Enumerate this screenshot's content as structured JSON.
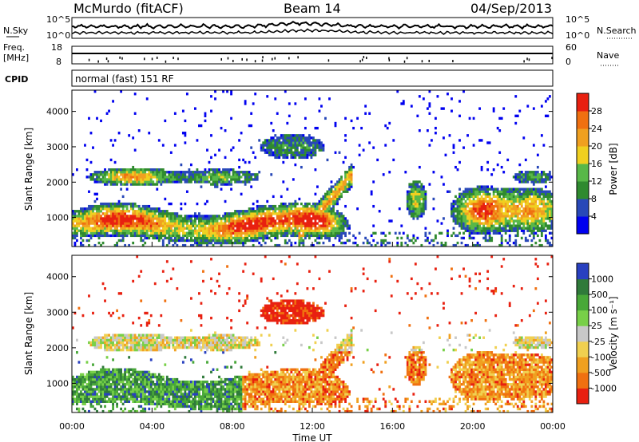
{
  "header": {
    "station": "McMurdo (fitACF)",
    "beam": "Beam 14",
    "date": "04/Sep/2013"
  },
  "status_panel": {
    "noise_left_label": "N.Sky",
    "noise_right_label": "N.Search",
    "noise_ticks": [
      "10^5",
      "10^0"
    ],
    "freq_label_line1": "Freq.",
    "freq_label_line2": "[MHz]",
    "freq_ticks": [
      "18",
      "8"
    ],
    "nave_label": "Nave",
    "nave_ticks": [
      "60",
      "0"
    ],
    "cpid_label": "CPID",
    "cpid_text": "normal (fast) 151 RF"
  },
  "colors": {
    "power_scale": [
      "#0000f0",
      "#2848b8",
      "#2f8a2f",
      "#58b848",
      "#f0d020",
      "#f0a020",
      "#f07010",
      "#e82010"
    ],
    "velocity_scale": [
      "#2840c0",
      "#2f7a3a",
      "#48a838",
      "#78d048",
      "#c8c8c8",
      "#f0d050",
      "#f0a020",
      "#f07010",
      "#e82010"
    ]
  },
  "chart_data": [
    {
      "type": "heatmap",
      "name": "power",
      "ylabel": "Slant Range [km]",
      "ylim": [
        180,
        4600
      ],
      "yticks": [
        "1000",
        "2000",
        "3000",
        "4000"
      ],
      "xlim": [
        "00:00",
        "24:00"
      ],
      "colorbar_label": "Power [dB]",
      "colorbar_ticks": [
        "4",
        "8",
        "12",
        "16",
        "20",
        "24",
        "28"
      ],
      "colorbar_range": [
        0,
        32
      ]
    },
    {
      "type": "heatmap",
      "name": "velocity",
      "ylabel": "Slant Range [km]",
      "ylim": [
        180,
        4600
      ],
      "yticks": [
        "1000",
        "2000",
        "3000",
        "4000"
      ],
      "xlabel": "Time UT",
      "xticks": [
        "00:00",
        "04:00",
        "08:00",
        "12:00",
        "16:00",
        "20:00",
        "00:00"
      ],
      "colorbar_label": "Velocity [m s⁻¹]",
      "colorbar_ticks": [
        "1000",
        "500",
        "100",
        "25",
        "-25",
        "-100",
        "-500",
        "-1000"
      ]
    }
  ]
}
